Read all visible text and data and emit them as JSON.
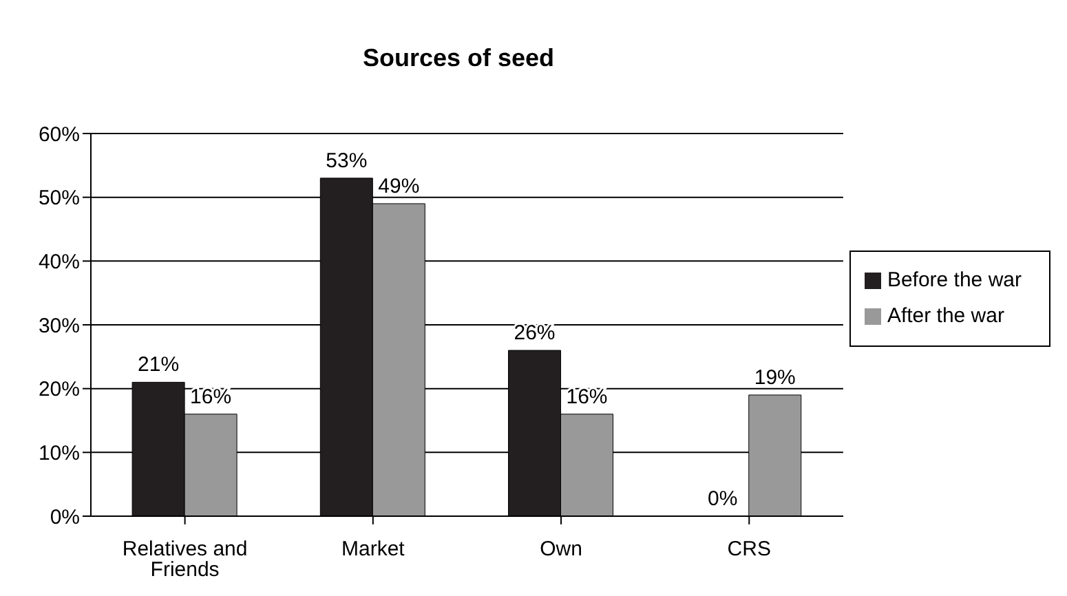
{
  "chart_data": {
    "type": "bar",
    "title": "Sources of seed",
    "categories": [
      "Relatives and Friends",
      "Market",
      "Own",
      "CRS"
    ],
    "series": [
      {
        "name": "Before the war",
        "color": "#231f20",
        "values": [
          21,
          53,
          26,
          0
        ],
        "value_labels": [
          "21%",
          "53%",
          "26%",
          "0%"
        ]
      },
      {
        "name": "After the war",
        "color": "#999999",
        "values": [
          16,
          49,
          16,
          19
        ],
        "value_labels": [
          "16%",
          "49%",
          "16%",
          "19%"
        ]
      }
    ],
    "ylim": [
      0,
      60
    ],
    "yticks": [
      {
        "value": 0,
        "label": "0%"
      },
      {
        "value": 10,
        "label": "10%"
      },
      {
        "value": 20,
        "label": "20%"
      },
      {
        "value": 30,
        "label": "30%"
      },
      {
        "value": 40,
        "label": "40%"
      },
      {
        "value": 50,
        "label": "50%"
      },
      {
        "value": 60,
        "label": "60%"
      }
    ],
    "grid": "y",
    "legend": "right"
  }
}
